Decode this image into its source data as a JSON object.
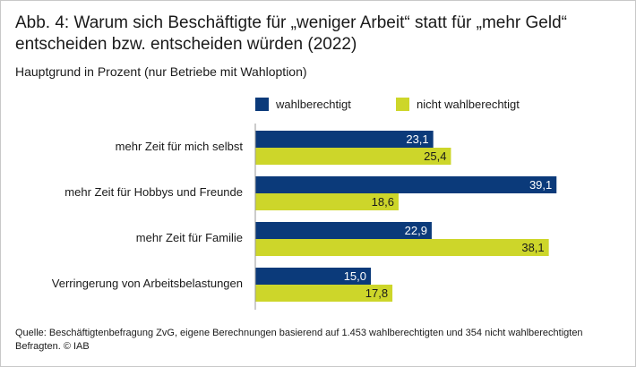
{
  "title_lines": [
    "Abb. 4: Warum sich Beschäftigte für „weniger Arbeit“ statt für „mehr Geld“",
    "entscheiden bzw. entscheiden würden (2022)"
  ],
  "subtitle": "Hauptgrund in Prozent (nur Betriebe mit Wahloption)",
  "source": "Quelle: Beschäftigtenbefragung ZvG, eigene Berechnungen basierend auf 1.453 wahlberechtigten und 354 nicht wahlberechtigten Befragten.  © IAB",
  "colors": {
    "series1": "#0b3a7a",
    "series2": "#cdd62a",
    "axis": "#9a9a9a",
    "label_on_dark": "#ffffff",
    "label_on_light": "#1a1a1a"
  },
  "chart_data": {
    "type": "bar",
    "orientation": "horizontal",
    "title": "Abb. 4: Warum sich Beschäftigte für „weniger Arbeit“ statt für „mehr Geld“ entscheiden bzw. entscheiden würden (2022)",
    "subtitle": "Hauptgrund in Prozent (nur Betriebe mit Wahloption)",
    "categories": [
      "mehr Zeit für mich selbst",
      "mehr Zeit für Hobbys und Freunde",
      "mehr Zeit für Familie",
      "Verringerung von Arbeitsbelastungen"
    ],
    "series": [
      {
        "name": "wahlberechtigt",
        "values": [
          23.1,
          39.1,
          22.9,
          15.0
        ],
        "labels": [
          "23,1",
          "39,1",
          "22,9",
          "15,0"
        ]
      },
      {
        "name": "nicht wahlberechtigt",
        "values": [
          25.4,
          18.6,
          38.1,
          17.8
        ],
        "labels": [
          "25,4",
          "18,6",
          "38,1",
          "17,8"
        ]
      }
    ],
    "xlim": [
      0,
      45
    ],
    "grid": false,
    "legend": "top"
  }
}
